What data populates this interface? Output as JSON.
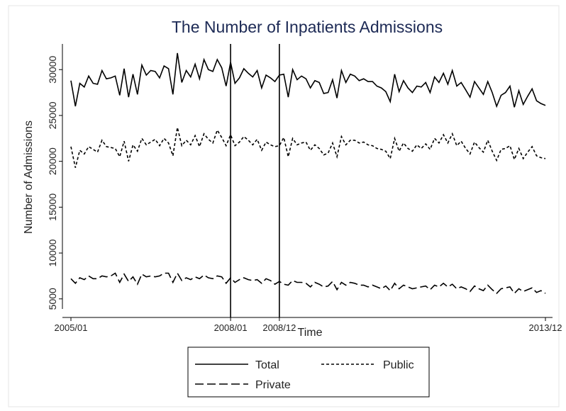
{
  "chart_data": {
    "type": "line",
    "title": "The Number of Inpatients Admissions",
    "x_label": "Time",
    "y_label": "Number of Admissions",
    "categories": [
      "2005/01",
      null,
      null,
      null,
      null,
      null,
      null,
      null,
      null,
      null,
      null,
      null,
      null,
      null,
      null,
      null,
      null,
      null,
      null,
      null,
      null,
      null,
      null,
      null,
      null,
      null,
      null,
      null,
      null,
      null,
      null,
      null,
      null,
      null,
      null,
      null,
      "2008/01",
      null,
      null,
      null,
      null,
      null,
      null,
      null,
      null,
      null,
      null,
      "2008/12",
      null,
      null,
      null,
      null,
      null,
      null,
      null,
      null,
      null,
      null,
      null,
      null,
      null,
      null,
      null,
      null,
      null,
      null,
      null,
      null,
      null,
      null,
      null,
      null,
      null,
      null,
      null,
      null,
      null,
      null,
      null,
      null,
      null,
      null,
      null,
      null,
      null,
      null,
      null,
      null,
      null,
      null,
      null,
      null,
      null,
      null,
      null,
      null,
      null,
      null,
      null,
      null,
      null,
      null,
      null,
      null,
      null,
      null,
      null,
      "2013/12"
    ],
    "vlines": [
      "2008/01",
      "2008/12"
    ],
    "series": [
      {
        "name": "Total",
        "color": "#000000",
        "dash": "solid",
        "values": [
          28800,
          26000,
          28500,
          28100,
          29300,
          28500,
          28400,
          29900,
          29000,
          29100,
          29300,
          27200,
          30100,
          27000,
          29500,
          27300,
          30500,
          29400,
          29900,
          29800,
          29100,
          30400,
          30100,
          27300,
          31800,
          28600,
          29900,
          29200,
          30600,
          29000,
          31100,
          30000,
          29800,
          31100,
          30200,
          28200,
          30800,
          28500,
          29100,
          30100,
          29600,
          29200,
          29900,
          28000,
          29400,
          29100,
          28700,
          29400,
          29500,
          27000,
          30000,
          28900,
          29300,
          29000,
          28000,
          28800,
          28600,
          27400,
          27500,
          28900,
          26900,
          29900,
          28600,
          29500,
          29300,
          28800,
          29000,
          28700,
          28700,
          28200,
          28000,
          27600,
          26500,
          29500,
          27600,
          28800,
          28000,
          27500,
          28200,
          28100,
          28600,
          27500,
          29200,
          28600,
          29600,
          28400,
          29900,
          28200,
          28600,
          27800,
          27000,
          28700,
          28000,
          27300,
          28700,
          27500,
          26000,
          27200,
          27500,
          28200,
          25900,
          27700,
          26200,
          27100,
          27900,
          26600,
          26300,
          26100
        ]
      },
      {
        "name": "Public",
        "color": "#000000",
        "dash": "short",
        "values": [
          21600,
          19300,
          21200,
          20800,
          21600,
          21300,
          21000,
          22300,
          21600,
          21500,
          21400,
          20500,
          22200,
          20000,
          21800,
          21100,
          22500,
          21800,
          22100,
          22400,
          21700,
          22500,
          22000,
          20600,
          23700,
          21700,
          22300,
          21800,
          22800,
          21600,
          23000,
          22400,
          22000,
          23400,
          22600,
          21700,
          22900,
          21700,
          22100,
          22700,
          22300,
          21800,
          22400,
          21200,
          22100,
          21800,
          21600,
          21700,
          22600,
          20500,
          22500,
          21800,
          22000,
          22100,
          21200,
          21800,
          21400,
          20700,
          20900,
          22000,
          20500,
          22700,
          21800,
          22300,
          22300,
          22000,
          22100,
          21800,
          21700,
          21400,
          21300,
          21100,
          20300,
          22500,
          21100,
          22000,
          21400,
          21100,
          21800,
          21400,
          21900,
          21300,
          22500,
          22000,
          22900,
          22000,
          23000,
          21700,
          22200,
          21400,
          20800,
          22100,
          21500,
          21000,
          22300,
          21100,
          20100,
          21300,
          21400,
          21700,
          20200,
          21400,
          20300,
          21000,
          21600,
          20600,
          20400,
          20300
        ]
      },
      {
        "name": "Private",
        "color": "#000000",
        "dash": "long",
        "values": [
          7200,
          6700,
          7300,
          7100,
          7500,
          7200,
          7200,
          7500,
          7400,
          7500,
          7800,
          6800,
          7700,
          6900,
          7400,
          6600,
          7700,
          7400,
          7500,
          7400,
          7500,
          7800,
          7800,
          6800,
          7800,
          7000,
          7300,
          7100,
          7400,
          7200,
          7600,
          7300,
          7200,
          7500,
          7400,
          6700,
          7300,
          6800,
          7100,
          7300,
          7100,
          7000,
          7100,
          6700,
          7200,
          7000,
          6600,
          6900,
          6600,
          6500,
          7000,
          6800,
          6800,
          6700,
          6300,
          6800,
          6600,
          6300,
          6400,
          6900,
          6000,
          6800,
          6500,
          6800,
          6700,
          6500,
          6500,
          6300,
          6500,
          6300,
          6100,
          6400,
          5900,
          6700,
          6100,
          6500,
          6300,
          6100,
          6200,
          6300,
          6400,
          6000,
          6500,
          6300,
          6700,
          6300,
          6600,
          6100,
          6300,
          6100,
          5800,
          6400,
          6100,
          5900,
          6500,
          6000,
          5600,
          6100,
          6200,
          6300,
          5600,
          6100,
          5800,
          6000,
          6200,
          5700,
          5900,
          5600
        ]
      }
    ],
    "ylim": [
      3900,
      32800
    ],
    "yticks": [
      5000,
      10000,
      15000,
      20000,
      25000,
      30000
    ]
  }
}
